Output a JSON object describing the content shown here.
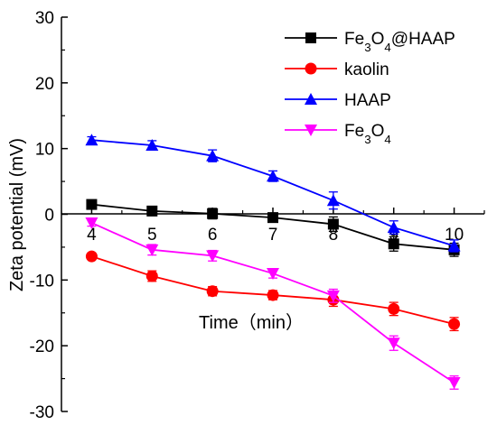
{
  "chart_data": {
    "type": "line",
    "title": "",
    "xlabel": "Time（min）",
    "ylabel": "Zeta potential (mV)",
    "x": [
      4,
      5,
      6,
      7,
      8,
      9,
      10
    ],
    "xticks": [
      "4",
      "5",
      "6",
      "7",
      "8",
      "9",
      "10"
    ],
    "xlim": [
      3.5,
      10.5
    ],
    "ylim": [
      -30,
      30
    ],
    "yticks": [
      "30",
      "20",
      "10",
      "0",
      "-10",
      "-20",
      "-30"
    ],
    "grid": false,
    "legend_position": "top-right",
    "series": [
      {
        "name": "Fe3O4@HAAP",
        "color": "#000000",
        "marker": "square",
        "values": [
          1.5,
          0.5,
          0.1,
          -0.5,
          -1.5,
          -4.5,
          -5.4
        ],
        "errors": [
          0.5,
          0.7,
          0.8,
          0.7,
          1.1,
          1.1,
          1.0
        ]
      },
      {
        "name": "kaolin",
        "color": "#ff0000",
        "marker": "circle",
        "values": [
          -6.4,
          -9.4,
          -11.7,
          -12.3,
          -13.0,
          -14.4,
          -16.7
        ],
        "errors": [
          0.4,
          0.8,
          0.7,
          0.7,
          1.0,
          1.0,
          1.0
        ]
      },
      {
        "name": "HAAP",
        "color": "#0000ff",
        "marker": "triangle-up",
        "values": [
          11.3,
          10.5,
          8.9,
          5.8,
          2.1,
          -2.0,
          -4.8
        ],
        "errors": [
          0.5,
          0.7,
          0.9,
          0.8,
          1.3,
          1.0,
          0.9
        ]
      },
      {
        "name": "Fe3O4",
        "color": "#ff00ff",
        "marker": "triangle-down",
        "values": [
          -1.3,
          -5.4,
          -6.3,
          -9.0,
          -12.4,
          -19.6,
          -25.6
        ],
        "errors": [
          0.5,
          0.8,
          0.8,
          0.7,
          1.0,
          1.1,
          1.0
        ]
      }
    ]
  }
}
